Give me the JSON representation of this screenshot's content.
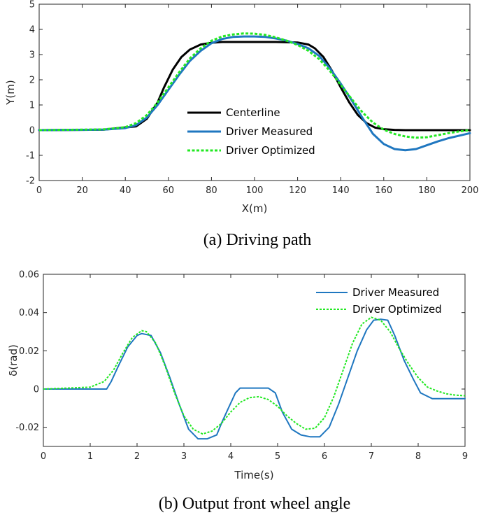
{
  "chart_data": [
    {
      "type": "line",
      "xlabel": "X(m)",
      "ylabel": "Y(m)",
      "xlim": [
        0,
        200
      ],
      "ylim": [
        -2,
        5
      ],
      "xticks": [
        "0",
        "20",
        "40",
        "60",
        "80",
        "100",
        "120",
        "140",
        "160",
        "180",
        "200"
      ],
      "yticks": [
        "-2",
        "-1",
        "0",
        "1",
        "2",
        "3",
        "4",
        "5"
      ],
      "grid": false,
      "legend_position": "center",
      "caption": "(a) Driving path",
      "series": [
        {
          "name": "Centerline",
          "color": "#000000",
          "style": "solid",
          "x": [
            0,
            30,
            45,
            50,
            55,
            58,
            62,
            66,
            70,
            75,
            80,
            85,
            90,
            100,
            110,
            120,
            125,
            128,
            132,
            136,
            140,
            144,
            148,
            152,
            156,
            160,
            165,
            170,
            180,
            200
          ],
          "y": [
            0,
            0.02,
            0.15,
            0.45,
            1.1,
            1.7,
            2.4,
            2.9,
            3.2,
            3.4,
            3.47,
            3.5,
            3.5,
            3.5,
            3.5,
            3.48,
            3.4,
            3.25,
            2.9,
            2.35,
            1.7,
            1.1,
            0.6,
            0.28,
            0.1,
            0.04,
            0.01,
            0,
            0,
            0
          ]
        },
        {
          "name": "Driver Measured",
          "color": "#1f77c0",
          "style": "solid",
          "x": [
            0,
            30,
            40,
            45,
            50,
            55,
            60,
            65,
            70,
            75,
            80,
            85,
            90,
            95,
            100,
            105,
            110,
            115,
            120,
            125,
            130,
            135,
            140,
            145,
            150,
            155,
            160,
            165,
            170,
            175,
            180,
            185,
            190,
            195,
            200
          ],
          "y": [
            0,
            0.02,
            0.08,
            0.2,
            0.5,
            1.0,
            1.6,
            2.2,
            2.75,
            3.15,
            3.45,
            3.62,
            3.7,
            3.72,
            3.72,
            3.7,
            3.64,
            3.55,
            3.42,
            3.25,
            2.95,
            2.45,
            1.85,
            1.2,
            0.5,
            -0.15,
            -0.55,
            -0.75,
            -0.8,
            -0.75,
            -0.6,
            -0.45,
            -0.32,
            -0.22,
            -0.12
          ]
        },
        {
          "name": "Driver Optimized",
          "color": "#22e822",
          "style": "dotted",
          "x": [
            0,
            30,
            40,
            45,
            50,
            55,
            60,
            65,
            70,
            75,
            80,
            85,
            90,
            95,
            100,
            105,
            110,
            115,
            120,
            125,
            130,
            135,
            140,
            145,
            150,
            155,
            160,
            165,
            170,
            175,
            180,
            185,
            190,
            195,
            200
          ],
          "y": [
            0,
            0.03,
            0.12,
            0.28,
            0.6,
            1.1,
            1.7,
            2.3,
            2.85,
            3.25,
            3.55,
            3.72,
            3.8,
            3.84,
            3.83,
            3.78,
            3.68,
            3.55,
            3.38,
            3.15,
            2.82,
            2.35,
            1.8,
            1.25,
            0.72,
            0.3,
            0.02,
            -0.15,
            -0.25,
            -0.3,
            -0.28,
            -0.2,
            -0.12,
            -0.05,
            0
          ]
        }
      ]
    },
    {
      "type": "line",
      "xlabel": "Time(s)",
      "ylabel": "δ(rad)",
      "xlim": [
        0,
        9
      ],
      "ylim": [
        -0.03,
        0.06
      ],
      "xticks": [
        "0",
        "1",
        "2",
        "3",
        "4",
        "5",
        "6",
        "7",
        "8",
        "9"
      ],
      "yticks": [
        "-0.02",
        "0",
        "0.02",
        "0.04",
        "0.06"
      ],
      "grid": false,
      "legend_position": "top-right",
      "caption": "(b) Output front wheel angle",
      "series": [
        {
          "name": "Driver Measured",
          "color": "#1f77c0",
          "style": "solid",
          "x": [
            0,
            1.35,
            1.45,
            1.6,
            1.8,
            2.0,
            2.1,
            2.3,
            2.5,
            2.7,
            2.9,
            3.1,
            3.3,
            3.5,
            3.7,
            3.8,
            3.95,
            4.1,
            4.2,
            4.4,
            4.6,
            4.8,
            4.95,
            5.1,
            5.3,
            5.5,
            5.7,
            5.9,
            6.1,
            6.3,
            6.5,
            6.7,
            6.9,
            7.05,
            7.2,
            7.35,
            7.5,
            7.7,
            7.9,
            8.05,
            8.3,
            8.6,
            9.0
          ],
          "y": [
            0,
            0,
            0.004,
            0.012,
            0.022,
            0.028,
            0.029,
            0.028,
            0.019,
            0.006,
            -0.008,
            -0.021,
            -0.026,
            -0.026,
            -0.024,
            -0.018,
            -0.01,
            -0.002,
            0.0005,
            0.0005,
            0.0005,
            0.0005,
            -0.002,
            -0.012,
            -0.021,
            -0.024,
            -0.025,
            -0.025,
            -0.02,
            -0.008,
            0.006,
            0.02,
            0.031,
            0.036,
            0.0365,
            0.036,
            0.028,
            0.015,
            0.005,
            -0.002,
            -0.005,
            -0.005,
            -0.005
          ]
        },
        {
          "name": "Driver Optimized",
          "color": "#22e822",
          "style": "dotted",
          "x": [
            0,
            1.0,
            1.3,
            1.5,
            1.7,
            1.9,
            2.1,
            2.2,
            2.4,
            2.6,
            2.8,
            3.0,
            3.2,
            3.4,
            3.6,
            3.8,
            4.0,
            4.2,
            4.4,
            4.6,
            4.8,
            5.0,
            5.2,
            5.4,
            5.6,
            5.8,
            6.0,
            6.2,
            6.4,
            6.6,
            6.8,
            7.0,
            7.2,
            7.4,
            7.6,
            7.8,
            8.0,
            8.2,
            8.4,
            8.6,
            8.8,
            9.0
          ],
          "y": [
            0,
            0.001,
            0.004,
            0.01,
            0.019,
            0.027,
            0.0305,
            0.03,
            0.024,
            0.012,
            -0.002,
            -0.014,
            -0.021,
            -0.0235,
            -0.022,
            -0.018,
            -0.012,
            -0.007,
            -0.0045,
            -0.004,
            -0.0055,
            -0.009,
            -0.014,
            -0.018,
            -0.021,
            -0.0205,
            -0.015,
            -0.004,
            0.01,
            0.024,
            0.034,
            0.0375,
            0.036,
            0.03,
            0.021,
            0.013,
            0.006,
            0.001,
            -0.001,
            -0.0025,
            -0.0032,
            -0.0035
          ]
        }
      ]
    }
  ]
}
